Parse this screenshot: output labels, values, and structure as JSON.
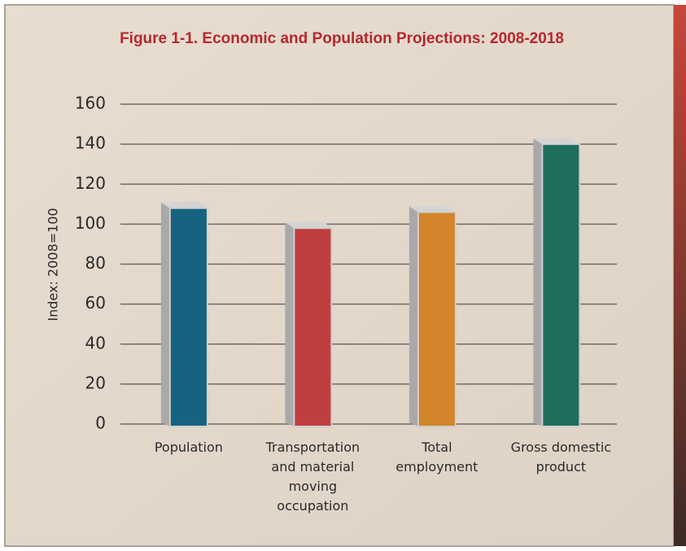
{
  "chart_data": {
    "type": "bar",
    "title": "Figure 1-1.  Economic and Population Projections: 2008-2018",
    "y_label": "Index: 2008=100",
    "categories": [
      "Population",
      "Transportation and material moving occupation",
      "Total employment",
      "Gross domestic product"
    ],
    "values": [
      108,
      98,
      106,
      140
    ],
    "colors": [
      "#17637f",
      "#bf3f3e",
      "#d2852a",
      "#1e6d5d"
    ],
    "ylim": [
      0,
      160
    ],
    "yticks": [
      0,
      20,
      40,
      60,
      80,
      100,
      120,
      140,
      160
    ],
    "grid": true
  }
}
